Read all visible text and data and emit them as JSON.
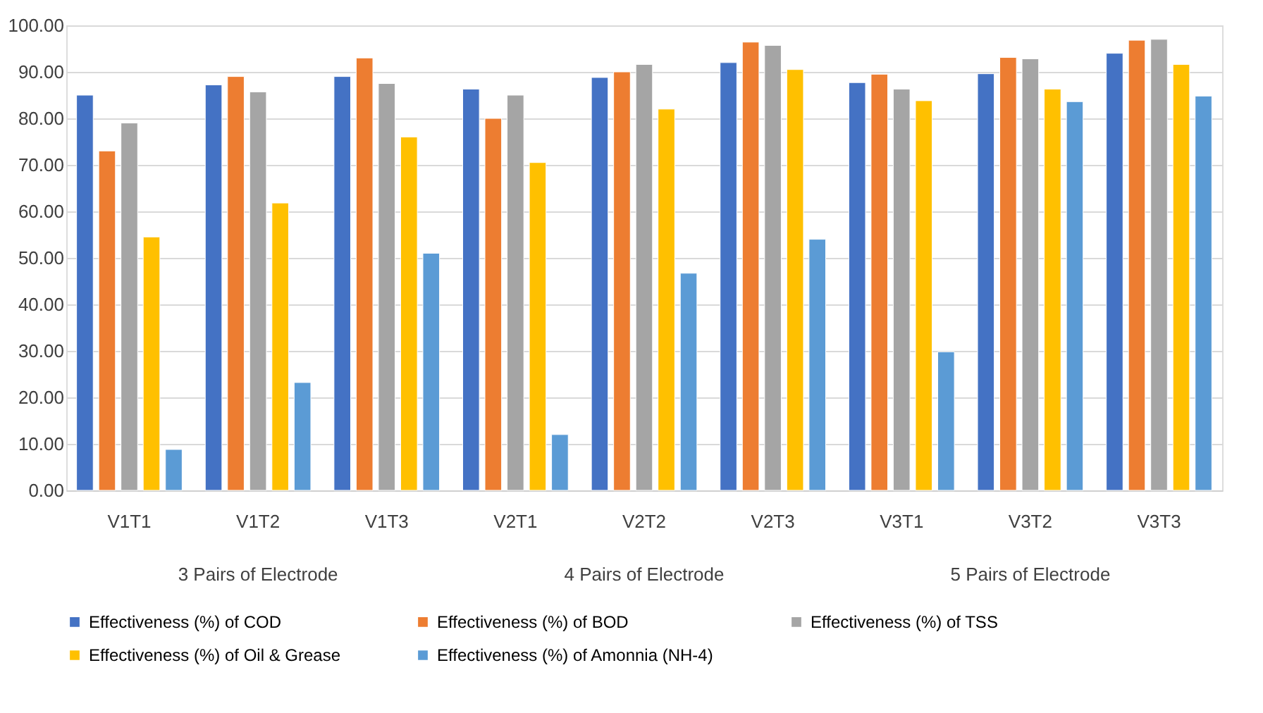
{
  "chart_data": {
    "type": "bar",
    "categories": [
      "V1T1",
      "V1T2",
      "V1T3",
      "V2T1",
      "V2T2",
      "V2T3",
      "V3T1",
      "V3T2",
      "V3T3"
    ],
    "series": [
      {
        "name": "Effectiveness (%) of COD",
        "color": "#4472c4",
        "values": [
          85.0,
          87.2,
          89.0,
          86.3,
          88.8,
          92.0,
          87.7,
          89.6,
          94.0
        ]
      },
      {
        "name": "Effectiveness (%) of BOD",
        "color": "#ed7d31",
        "values": [
          73.0,
          89.0,
          93.0,
          80.0,
          90.0,
          96.4,
          89.5,
          93.1,
          96.8
        ]
      },
      {
        "name": "Effectiveness (%) of TSS",
        "color": "#a5a5a5",
        "values": [
          79.0,
          85.7,
          87.5,
          85.0,
          91.6,
          95.7,
          86.3,
          92.8,
          97.0
        ]
      },
      {
        "name": "Effectiveness (%) of Oil & Grease",
        "color": "#ffc000",
        "values": [
          54.5,
          61.8,
          76.0,
          70.5,
          82.0,
          90.5,
          83.8,
          86.3,
          91.6
        ]
      },
      {
        "name": "Effectiveness (%) of Amonnia (NH-4)",
        "color": "#5b9bd5",
        "values": [
          8.8,
          23.2,
          51.0,
          12.0,
          46.7,
          54.0,
          29.8,
          83.6,
          84.8
        ]
      }
    ],
    "ylim": [
      0,
      100
    ],
    "yticks": [
      {
        "value": 0,
        "label": "0.00"
      },
      {
        "value": 10,
        "label": "10.00"
      },
      {
        "value": 20,
        "label": "20.00"
      },
      {
        "value": 30,
        "label": "30.00"
      },
      {
        "value": 40,
        "label": "40.00"
      },
      {
        "value": 50,
        "label": "50.00"
      },
      {
        "value": 60,
        "label": "60.00"
      },
      {
        "value": 70,
        "label": "70.00"
      },
      {
        "value": 80,
        "label": "80.00"
      },
      {
        "value": 90,
        "label": "90.00"
      },
      {
        "value": 100,
        "label": "100.00"
      }
    ],
    "annotations": [
      "3 Pairs of Electrode",
      "4 Pairs of Electrode",
      "5 Pairs of Electrode"
    ],
    "grid": "y",
    "legend": "bottom"
  }
}
